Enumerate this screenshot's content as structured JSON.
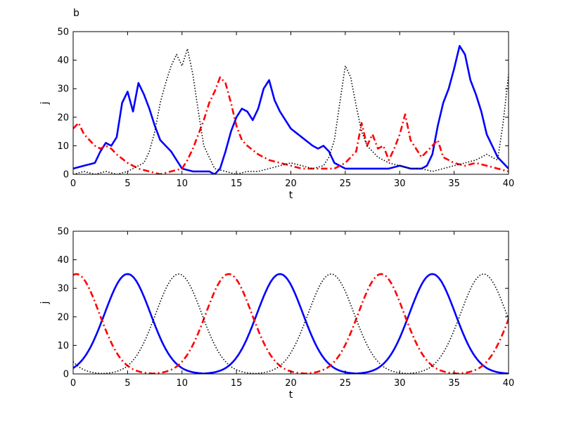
{
  "chart_data": [
    {
      "type": "line",
      "panel_label": "b",
      "xlabel": "t",
      "ylabel": "j",
      "xlim": [
        0,
        40
      ],
      "ylim": [
        0,
        50
      ],
      "xticks": [
        0,
        5,
        10,
        15,
        20,
        25,
        30,
        35,
        40
      ],
      "yticks": [
        0,
        10,
        20,
        30,
        40,
        50
      ],
      "grid": false,
      "legend": "none",
      "series": [
        {
          "style": "solid",
          "color": "#0000ff",
          "x": [
            0,
            1,
            2,
            2.5,
            3,
            3.5,
            4,
            4.5,
            5,
            5.5,
            6,
            6.5,
            7,
            7.5,
            8,
            8.5,
            9,
            9.5,
            10,
            11,
            12,
            12.5,
            13,
            13.5,
            14,
            14.5,
            15,
            15.5,
            16,
            16.5,
            17,
            17.5,
            18,
            18.5,
            19,
            19.5,
            20,
            21,
            22,
            22.5,
            23,
            23.5,
            24,
            24.5,
            25,
            26,
            27,
            28,
            29,
            30,
            31,
            32,
            32.5,
            33,
            33.5,
            34,
            34.5,
            35,
            35.5,
            36,
            36.5,
            37,
            37.5,
            38,
            38.5,
            39,
            39.5,
            40
          ],
          "y": [
            2,
            3,
            4,
            8,
            11,
            10,
            13,
            25,
            29,
            22,
            32,
            28,
            23,
            17,
            12,
            10,
            8,
            5,
            2,
            1,
            1,
            1,
            0,
            2,
            8,
            15,
            20,
            23,
            22,
            19,
            23,
            30,
            33,
            26,
            22,
            19,
            16,
            13,
            10,
            9,
            10,
            8,
            4,
            3,
            2,
            2,
            2,
            2,
            2,
            3,
            2,
            2,
            3,
            7,
            17,
            25,
            30,
            37,
            45,
            42,
            33,
            28,
            22,
            14,
            10,
            6,
            4,
            2
          ]
        },
        {
          "style": "dash-dot",
          "color": "#ff0000",
          "x": [
            0,
            0.5,
            1,
            1.5,
            2,
            2.5,
            3,
            3.5,
            4,
            5,
            6,
            7,
            8,
            9,
            10,
            10.5,
            11,
            11.5,
            12,
            12.5,
            13,
            13.5,
            14,
            14.5,
            15,
            15.5,
            16,
            17,
            18,
            19,
            20,
            21,
            22,
            23,
            24,
            25,
            26,
            26.5,
            27,
            27.5,
            28,
            28.5,
            29,
            29.5,
            30,
            30.5,
            31,
            31.5,
            32,
            32.5,
            33,
            33.5,
            34,
            35,
            36,
            37,
            38,
            39,
            40
          ],
          "y": [
            16,
            18,
            14,
            12,
            10,
            9,
            10,
            9,
            7,
            4,
            2,
            1,
            0,
            1,
            2,
            5,
            9,
            14,
            19,
            25,
            29,
            34,
            32,
            25,
            17,
            12,
            10,
            7,
            5,
            4,
            3,
            2,
            2,
            2,
            2,
            4,
            8,
            18,
            10,
            14,
            9,
            10,
            5,
            9,
            14,
            21,
            12,
            9,
            6,
            8,
            10,
            12,
            6,
            4,
            3,
            4,
            3,
            2,
            1
          ]
        },
        {
          "style": "dotted",
          "color": "#000000",
          "x": [
            0,
            1,
            2,
            3,
            4,
            5,
            6,
            6.5,
            7,
            7.5,
            8,
            8.5,
            9,
            9.5,
            10,
            10.5,
            11,
            11.5,
            12,
            13,
            14,
            15,
            16,
            17,
            18,
            19,
            20,
            21,
            22,
            23,
            23.5,
            24,
            24.5,
            25,
            25.5,
            26,
            26.5,
            27,
            28,
            29,
            30,
            31,
            32,
            33,
            34,
            35,
            36,
            37,
            38,
            39,
            39.5,
            40
          ],
          "y": [
            0,
            1,
            0,
            1,
            0,
            1,
            3,
            4,
            8,
            15,
            25,
            32,
            38,
            42,
            38,
            44,
            35,
            22,
            10,
            2,
            1,
            0,
            1,
            1,
            2,
            3,
            4,
            3,
            2,
            3,
            6,
            12,
            25,
            38,
            34,
            24,
            15,
            10,
            6,
            4,
            3,
            2,
            2,
            1,
            2,
            3,
            4,
            5,
            7,
            5,
            18,
            35
          ]
        }
      ]
    },
    {
      "type": "line",
      "xlabel": "t",
      "ylabel": "j",
      "xlim": [
        0,
        40
      ],
      "ylim": [
        0,
        50
      ],
      "xticks": [
        0,
        5,
        10,
        15,
        20,
        25,
        30,
        35,
        40
      ],
      "yticks": [
        0,
        10,
        20,
        30,
        40,
        50
      ],
      "grid": false,
      "legend": "none",
      "period": 14,
      "peak": 35,
      "series": [
        {
          "style": "solid",
          "color": "#0000ff",
          "peak_t": 5
        },
        {
          "style": "dash-dot",
          "color": "#ff0000",
          "peak_t": 0.3
        },
        {
          "style": "dotted",
          "color": "#000000",
          "peak_t": 9.7
        }
      ]
    }
  ]
}
